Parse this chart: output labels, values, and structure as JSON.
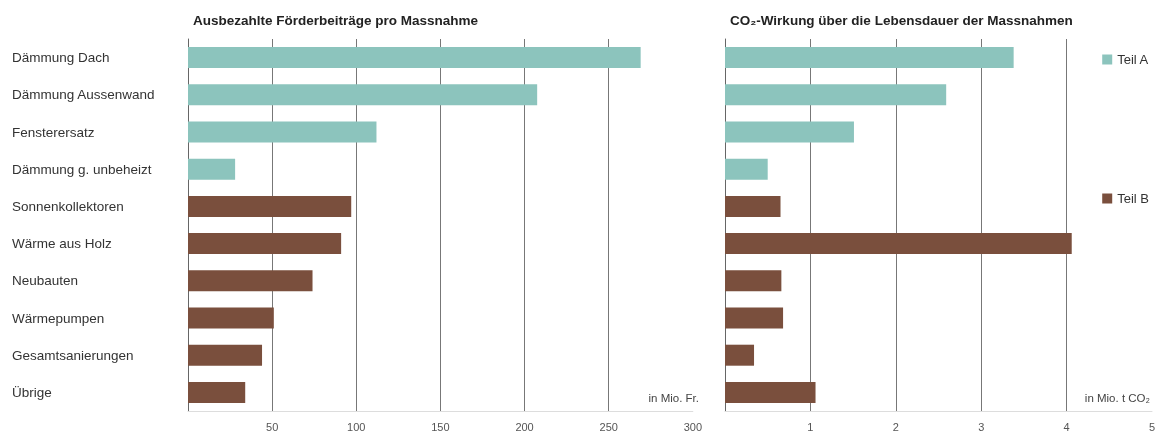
{
  "chart_data": [
    {
      "type": "bar",
      "orientation": "horizontal",
      "title": "Ausbezahlte Förderbeiträge pro Massnahme",
      "xlabel": "in Mio. Fr.",
      "categories": [
        "Dämmung Dach",
        "Dämmung Aussenwand",
        "Fensterersatz",
        "Dämmung g. unbeheizt",
        "Sonnenkollektoren",
        "Wärme aus Holz",
        "Neubauten",
        "Wärmepumpen",
        "Gesamtsanierungen",
        "Übrige"
      ],
      "series": [
        {
          "color": "#8cc4bd",
          "values": [
            269,
            207.5,
            112,
            28,
            null,
            null,
            null,
            null,
            null,
            null
          ]
        },
        {
          "color": "#7a4f3d",
          "values": [
            null,
            null,
            null,
            null,
            97,
            91,
            74,
            51,
            44,
            34
          ]
        }
      ],
      "xlim": [
        0,
        300
      ],
      "xticks": [
        {
          "value": 0,
          "label": null
        },
        50,
        100,
        150,
        200,
        250,
        300
      ],
      "grid": "x"
    },
    {
      "type": "bar",
      "orientation": "horizontal",
      "title": "CO₂-Wirkung über die Lebensdauer der Massnahmen",
      "xlabel": "in Mio. t CO₂",
      "categories": [
        null,
        null,
        null,
        null,
        null,
        null,
        null,
        null,
        null,
        null
      ],
      "series": [
        {
          "name": "Teil A",
          "color": "#8cc4bd",
          "values": [
            3.38,
            2.59,
            1.51,
            0.5,
            null,
            null,
            null,
            null,
            null,
            null
          ]
        },
        {
          "name": "Teil B",
          "color": "#7a4f3d",
          "values": [
            null,
            null,
            null,
            null,
            0.65,
            4.06,
            0.66,
            0.68,
            0.34,
            1.06
          ]
        }
      ],
      "xlim": [
        0,
        5
      ],
      "xticks": [
        {
          "value": 0,
          "label": null
        },
        1,
        2,
        3,
        4,
        5
      ],
      "grid": "x",
      "tick_labels": "x",
      "legend": "right"
    }
  ]
}
